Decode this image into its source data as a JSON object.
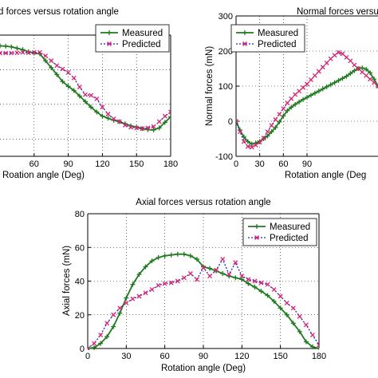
{
  "chart_data": [
    {
      "type": "line",
      "title": "d forces versus rotation angle",
      "xlabel": "Roation angle (Deg)",
      "ylabel": "",
      "xlim": [
        30,
        180
      ],
      "ylim": [
        -50,
        300
      ],
      "xticks": [
        "60",
        "90",
        "120",
        "150",
        "180"
      ],
      "yticks": [],
      "grid": true,
      "legend_position": "top-right",
      "series": [
        {
          "name": "Measured",
          "color": "#1f7a1f",
          "x": [
            30,
            35,
            40,
            45,
            50,
            55,
            60,
            65,
            70,
            75,
            80,
            85,
            90,
            95,
            100,
            105,
            110,
            115,
            120,
            125,
            130,
            135,
            140,
            145,
            150,
            155,
            160,
            165,
            170,
            175,
            180
          ],
          "y": [
            269,
            268,
            266,
            262,
            258,
            252,
            248,
            246,
            226,
            206,
            186,
            166,
            152,
            140,
            124,
            108,
            92,
            78,
            66,
            60,
            54,
            50,
            44,
            38,
            34,
            30,
            27,
            26,
            32,
            48,
            64
          ]
        },
        {
          "name": "Predicted",
          "color": "#2020d0",
          "x": [
            30,
            35,
            40,
            45,
            50,
            55,
            60,
            65,
            70,
            75,
            80,
            85,
            90,
            95,
            100,
            105,
            110,
            115,
            120,
            125,
            130,
            135,
            140,
            145,
            150,
            155,
            160,
            165,
            170,
            175,
            180
          ],
          "y": [
            248,
            248,
            248,
            249,
            250,
            249,
            250,
            250,
            240,
            226,
            212,
            202,
            192,
            176,
            150,
            128,
            126,
            116,
            92,
            72,
            58,
            50,
            40,
            34,
            32,
            30,
            32,
            36,
            50,
            66,
            78
          ]
        }
      ]
    },
    {
      "type": "line",
      "title": "Normal forces versus ro",
      "xlabel": "Rotation angle (Deg",
      "ylabel": "Normal forces (mN)",
      "xlim": [
        0,
        180
      ],
      "ylim": [
        -100,
        300
      ],
      "xticks": [
        "0",
        "30",
        "60",
        "90"
      ],
      "yticks": [
        "-100",
        "0",
        "100",
        "200",
        "300"
      ],
      "grid": true,
      "legend_position": "top-right",
      "series": [
        {
          "name": "Measured",
          "color": "#1f7a1f",
          "x": [
            0,
            5,
            10,
            15,
            20,
            25,
            30,
            35,
            40,
            45,
            50,
            55,
            60,
            65,
            70,
            75,
            80,
            85,
            90,
            95,
            100,
            105,
            110,
            115,
            120,
            125,
            130,
            135,
            140,
            145,
            150,
            155,
            160,
            165,
            170,
            175,
            180
          ],
          "y": [
            0,
            -25,
            -45,
            -58,
            -65,
            -62,
            -58,
            -50,
            -42,
            -30,
            -18,
            -2,
            15,
            30,
            40,
            48,
            55,
            62,
            68,
            74,
            80,
            86,
            92,
            98,
            104,
            110,
            116,
            122,
            128,
            136,
            144,
            150,
            152,
            148,
            138,
            120,
            100
          ]
        },
        {
          "name": "Predicted",
          "color": "#2020d0",
          "x": [
            0,
            5,
            10,
            15,
            20,
            25,
            30,
            35,
            40,
            45,
            50,
            55,
            60,
            65,
            70,
            75,
            80,
            85,
            90,
            95,
            100,
            105,
            110,
            115,
            120,
            125,
            130,
            135,
            140,
            145,
            150,
            155,
            160,
            165,
            170,
            175,
            180
          ],
          "y": [
            0,
            -30,
            -58,
            -72,
            -74,
            -68,
            -60,
            -48,
            -30,
            -12,
            5,
            20,
            36,
            52,
            64,
            76,
            86,
            96,
            106,
            118,
            130,
            142,
            154,
            166,
            178,
            188,
            196,
            192,
            182,
            172,
            160,
            150,
            140,
            130,
            120,
            110,
            100
          ]
        }
      ]
    },
    {
      "type": "line",
      "title": "Axial forces versus rotation angle",
      "xlabel": "Rotation angle (Deg)",
      "ylabel": "Axial forces (mN)",
      "xlim": [
        0,
        180
      ],
      "ylim": [
        0,
        80
      ],
      "xticks": [
        "0",
        "30",
        "60",
        "90",
        "120",
        "150",
        "180"
      ],
      "yticks": [
        "0",
        "20",
        "40",
        "60",
        "80"
      ],
      "grid": true,
      "legend_position": "top-right",
      "series": [
        {
          "name": "Measured",
          "color": "#1f7a1f",
          "x": [
            0,
            5,
            10,
            15,
            20,
            25,
            30,
            35,
            40,
            45,
            50,
            55,
            60,
            65,
            70,
            75,
            80,
            85,
            90,
            95,
            100,
            105,
            110,
            115,
            120,
            125,
            130,
            135,
            140,
            145,
            150,
            155,
            160,
            165,
            170,
            175,
            180
          ],
          "y": [
            0,
            0.5,
            3,
            7,
            13,
            21,
            30,
            38,
            44,
            48.5,
            52,
            54,
            55,
            55.5,
            56,
            56,
            55,
            53,
            48.5,
            47.5,
            46,
            44.5,
            43,
            42,
            41,
            38.5,
            36.5,
            34,
            31.5,
            28,
            24,
            20,
            15,
            10,
            4,
            1,
            0
          ]
        },
        {
          "name": "Predicted",
          "color": "#2020d0",
          "x": [
            0,
            5,
            10,
            15,
            20,
            25,
            30,
            35,
            40,
            45,
            50,
            55,
            60,
            65,
            70,
            75,
            80,
            85,
            90,
            95,
            100,
            105,
            110,
            115,
            120,
            125,
            130,
            135,
            140,
            145,
            150,
            155,
            160,
            165,
            170,
            175,
            180
          ],
          "y": [
            0,
            3,
            8,
            15,
            20,
            24,
            27,
            29.5,
            31,
            33,
            35,
            37.5,
            38.5,
            39,
            40,
            42,
            44.5,
            41,
            48,
            43,
            46.5,
            53,
            44,
            51,
            43,
            41,
            40,
            39,
            38,
            35,
            31,
            27,
            24,
            19,
            14,
            8,
            2
          ]
        }
      ]
    }
  ]
}
